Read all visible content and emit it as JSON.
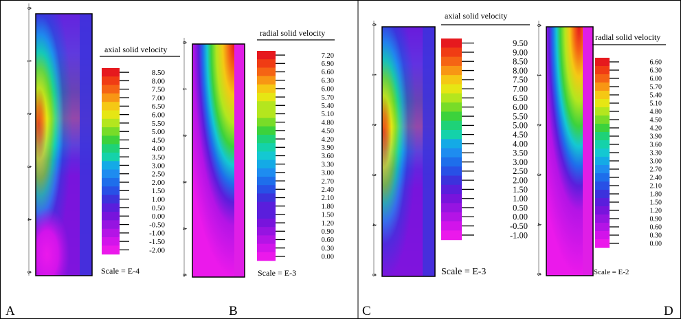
{
  "chart_data": [
    {
      "type": "heatmap",
      "panel_label": "A",
      "title": "axial solid velocity",
      "scale_note": "Scale = E-4",
      "axis_ticks": [
        "0",
        "1",
        "2",
        "3",
        "4",
        "5"
      ],
      "legend_values": [
        "8.50",
        "8.00",
        "7.50",
        "7.00",
        "6.50",
        "6.00",
        "5.50",
        "5.00",
        "4.50",
        "4.00",
        "3.50",
        "3.00",
        "2.50",
        "2.00",
        "1.50",
        "1.00",
        "0.50",
        "0.00",
        "-0.50",
        "-1.00",
        "-1.50",
        "-2.00"
      ],
      "colormap": [
        "#e6191e",
        "#f03c14",
        "#f56414",
        "#f89614",
        "#f5c814",
        "#e6e614",
        "#b4e61e",
        "#78dc28",
        "#3cd23c",
        "#1ed278",
        "#14d2aa",
        "#14c8d2",
        "#14aae6",
        "#1e8cf0",
        "#1e6eeb",
        "#2850e6",
        "#3c32dc",
        "#5a1edc",
        "#7814dc",
        "#9614e1",
        "#b414e6",
        "#d214eb",
        "#eb19eb"
      ]
    },
    {
      "type": "heatmap",
      "panel_label": "B",
      "title": "radial solid velocity",
      "scale_note": "Scale = E-3",
      "axis_ticks": [
        "0",
        "1",
        "2",
        "3",
        "4",
        "5"
      ],
      "legend_values": [
        "7.20",
        "6.90",
        "6.60",
        "6.30",
        "6.00",
        "5.70",
        "5.40",
        "5.10",
        "4.80",
        "4.50",
        "4.20",
        "3.90",
        "3.60",
        "3.30",
        "3.00",
        "2.70",
        "2.40",
        "2.10",
        "1.80",
        "1.50",
        "1.20",
        "0.90",
        "0.60",
        "0.30",
        "0.00"
      ]
    },
    {
      "type": "heatmap",
      "panel_label": "C",
      "title": "axial solid velocity",
      "scale_note": "Scale = E-3",
      "axis_ticks": [
        "0",
        "1",
        "2",
        "3",
        "4",
        "5"
      ],
      "legend_values": [
        "9.50",
        "9.00",
        "8.50",
        "8.00",
        "7.50",
        "7.00",
        "6.50",
        "6.00",
        "5.50",
        "5.00",
        "4.50",
        "4.00",
        "3.50",
        "3.00",
        "2.50",
        "2.00",
        "1.50",
        "1.00",
        "0.50",
        "0.00",
        "-0.50",
        "-1.00"
      ]
    },
    {
      "type": "heatmap",
      "panel_label": "D",
      "title": "radial solid velocity",
      "scale_note": "Scale = E-2",
      "axis_ticks": [
        "0",
        "1",
        "2",
        "3",
        "4",
        "5"
      ],
      "legend_values": [
        "6.60",
        "6.30",
        "6.00",
        "5.70",
        "5.40",
        "5.10",
        "4.80",
        "4.50",
        "4.20",
        "3.90",
        "3.60",
        "3.30",
        "3.00",
        "2.70",
        "2.40",
        "2.10",
        "1.80",
        "1.50",
        "1.20",
        "0.90",
        "0.60",
        "0.30",
        "0.00"
      ]
    }
  ]
}
